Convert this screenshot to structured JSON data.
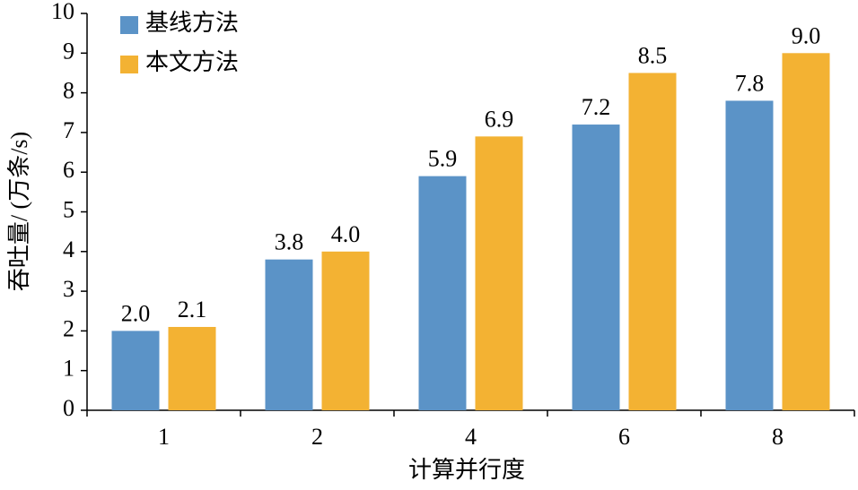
{
  "chart_data": {
    "type": "bar",
    "y_label": "吞吐量/ (万条/s)",
    "x_label": "计算并行度",
    "categories": [
      "1",
      "2",
      "4",
      "6",
      "8"
    ],
    "series": [
      {
        "name": "基线方法",
        "color": "#5b93c7",
        "values": [
          2.0,
          3.8,
          5.9,
          7.2,
          7.8
        ],
        "value_labels": [
          "2.0",
          "3.8",
          "5.9",
          "7.2",
          "7.8"
        ]
      },
      {
        "name": "本文方法",
        "color": "#f3b233",
        "values": [
          2.1,
          4.0,
          6.9,
          8.5,
          9.0
        ],
        "value_labels": [
          "2.1",
          "4.0",
          "6.9",
          "8.5",
          "9.0"
        ]
      }
    ],
    "ylim": [
      0,
      10
    ],
    "yticks": [
      0,
      1,
      2,
      3,
      4,
      5,
      6,
      7,
      8,
      9,
      10
    ],
    "legend": "upper-left",
    "grid": false
  }
}
